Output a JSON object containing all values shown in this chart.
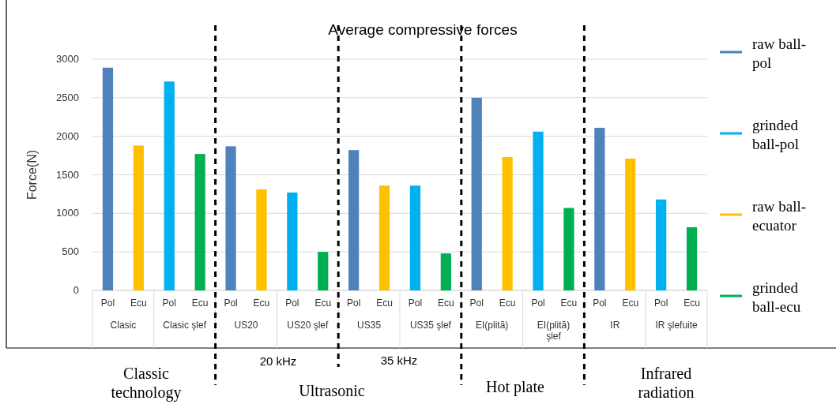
{
  "chart_data": {
    "type": "bar",
    "title": "Average compressive forces",
    "ylabel": "Force(N)",
    "categories": [
      "Pol",
      "Ecu",
      "Pol",
      "Ecu",
      "Pol",
      "Ecu",
      "Pol",
      "Ecu",
      "Pol",
      "Ecu",
      "Pol",
      "Ecu",
      "Pol",
      "Ecu",
      "Pol",
      "Ecu",
      "Pol",
      "Ecu",
      "Pol",
      "Ecu"
    ],
    "series": [
      {
        "name": "raw ball-pol",
        "color": "#4f81bd",
        "values": [
          2890,
          null,
          null,
          null,
          1870,
          null,
          null,
          null,
          1820,
          null,
          null,
          null,
          2500,
          null,
          null,
          null,
          2110,
          null,
          null,
          null
        ]
      },
      {
        "name": "grinded ball-pol",
        "color": "#00b0f0",
        "values": [
          null,
          null,
          2710,
          null,
          null,
          null,
          1270,
          null,
          null,
          null,
          1360,
          null,
          null,
          null,
          2060,
          null,
          null,
          null,
          1180,
          null
        ]
      },
      {
        "name": "raw ball-ecuator",
        "color": "#ffc000",
        "values": [
          null,
          1880,
          null,
          null,
          null,
          1310,
          null,
          null,
          null,
          1360,
          null,
          null,
          null,
          1730,
          null,
          null,
          null,
          1710,
          null,
          null
        ]
      },
      {
        "name": "grinded ball-ecu",
        "color": "#00b050",
        "values": [
          null,
          null,
          null,
          1770,
          null,
          null,
          null,
          500,
          null,
          null,
          null,
          480,
          null,
          null,
          null,
          1070,
          null,
          null,
          null,
          820
        ]
      }
    ],
    "ylim": [
      0,
      3000
    ],
    "yticks": [
      0,
      500,
      1000,
      1500,
      2000,
      2500,
      3000
    ],
    "grid": "y",
    "legend": "right",
    "annotations": [
      "Clasic",
      "Clasic şlef",
      "US20",
      "US20 şlef",
      "US35",
      "US35 şlef",
      "EI(plită)",
      "EI(plită) şlef",
      "IR",
      "IR şlefuite",
      "20 kHz",
      "35 kHz",
      "Classic technology",
      "Ultrasonic",
      "Hot plate",
      "Infrared radiation"
    ]
  }
}
